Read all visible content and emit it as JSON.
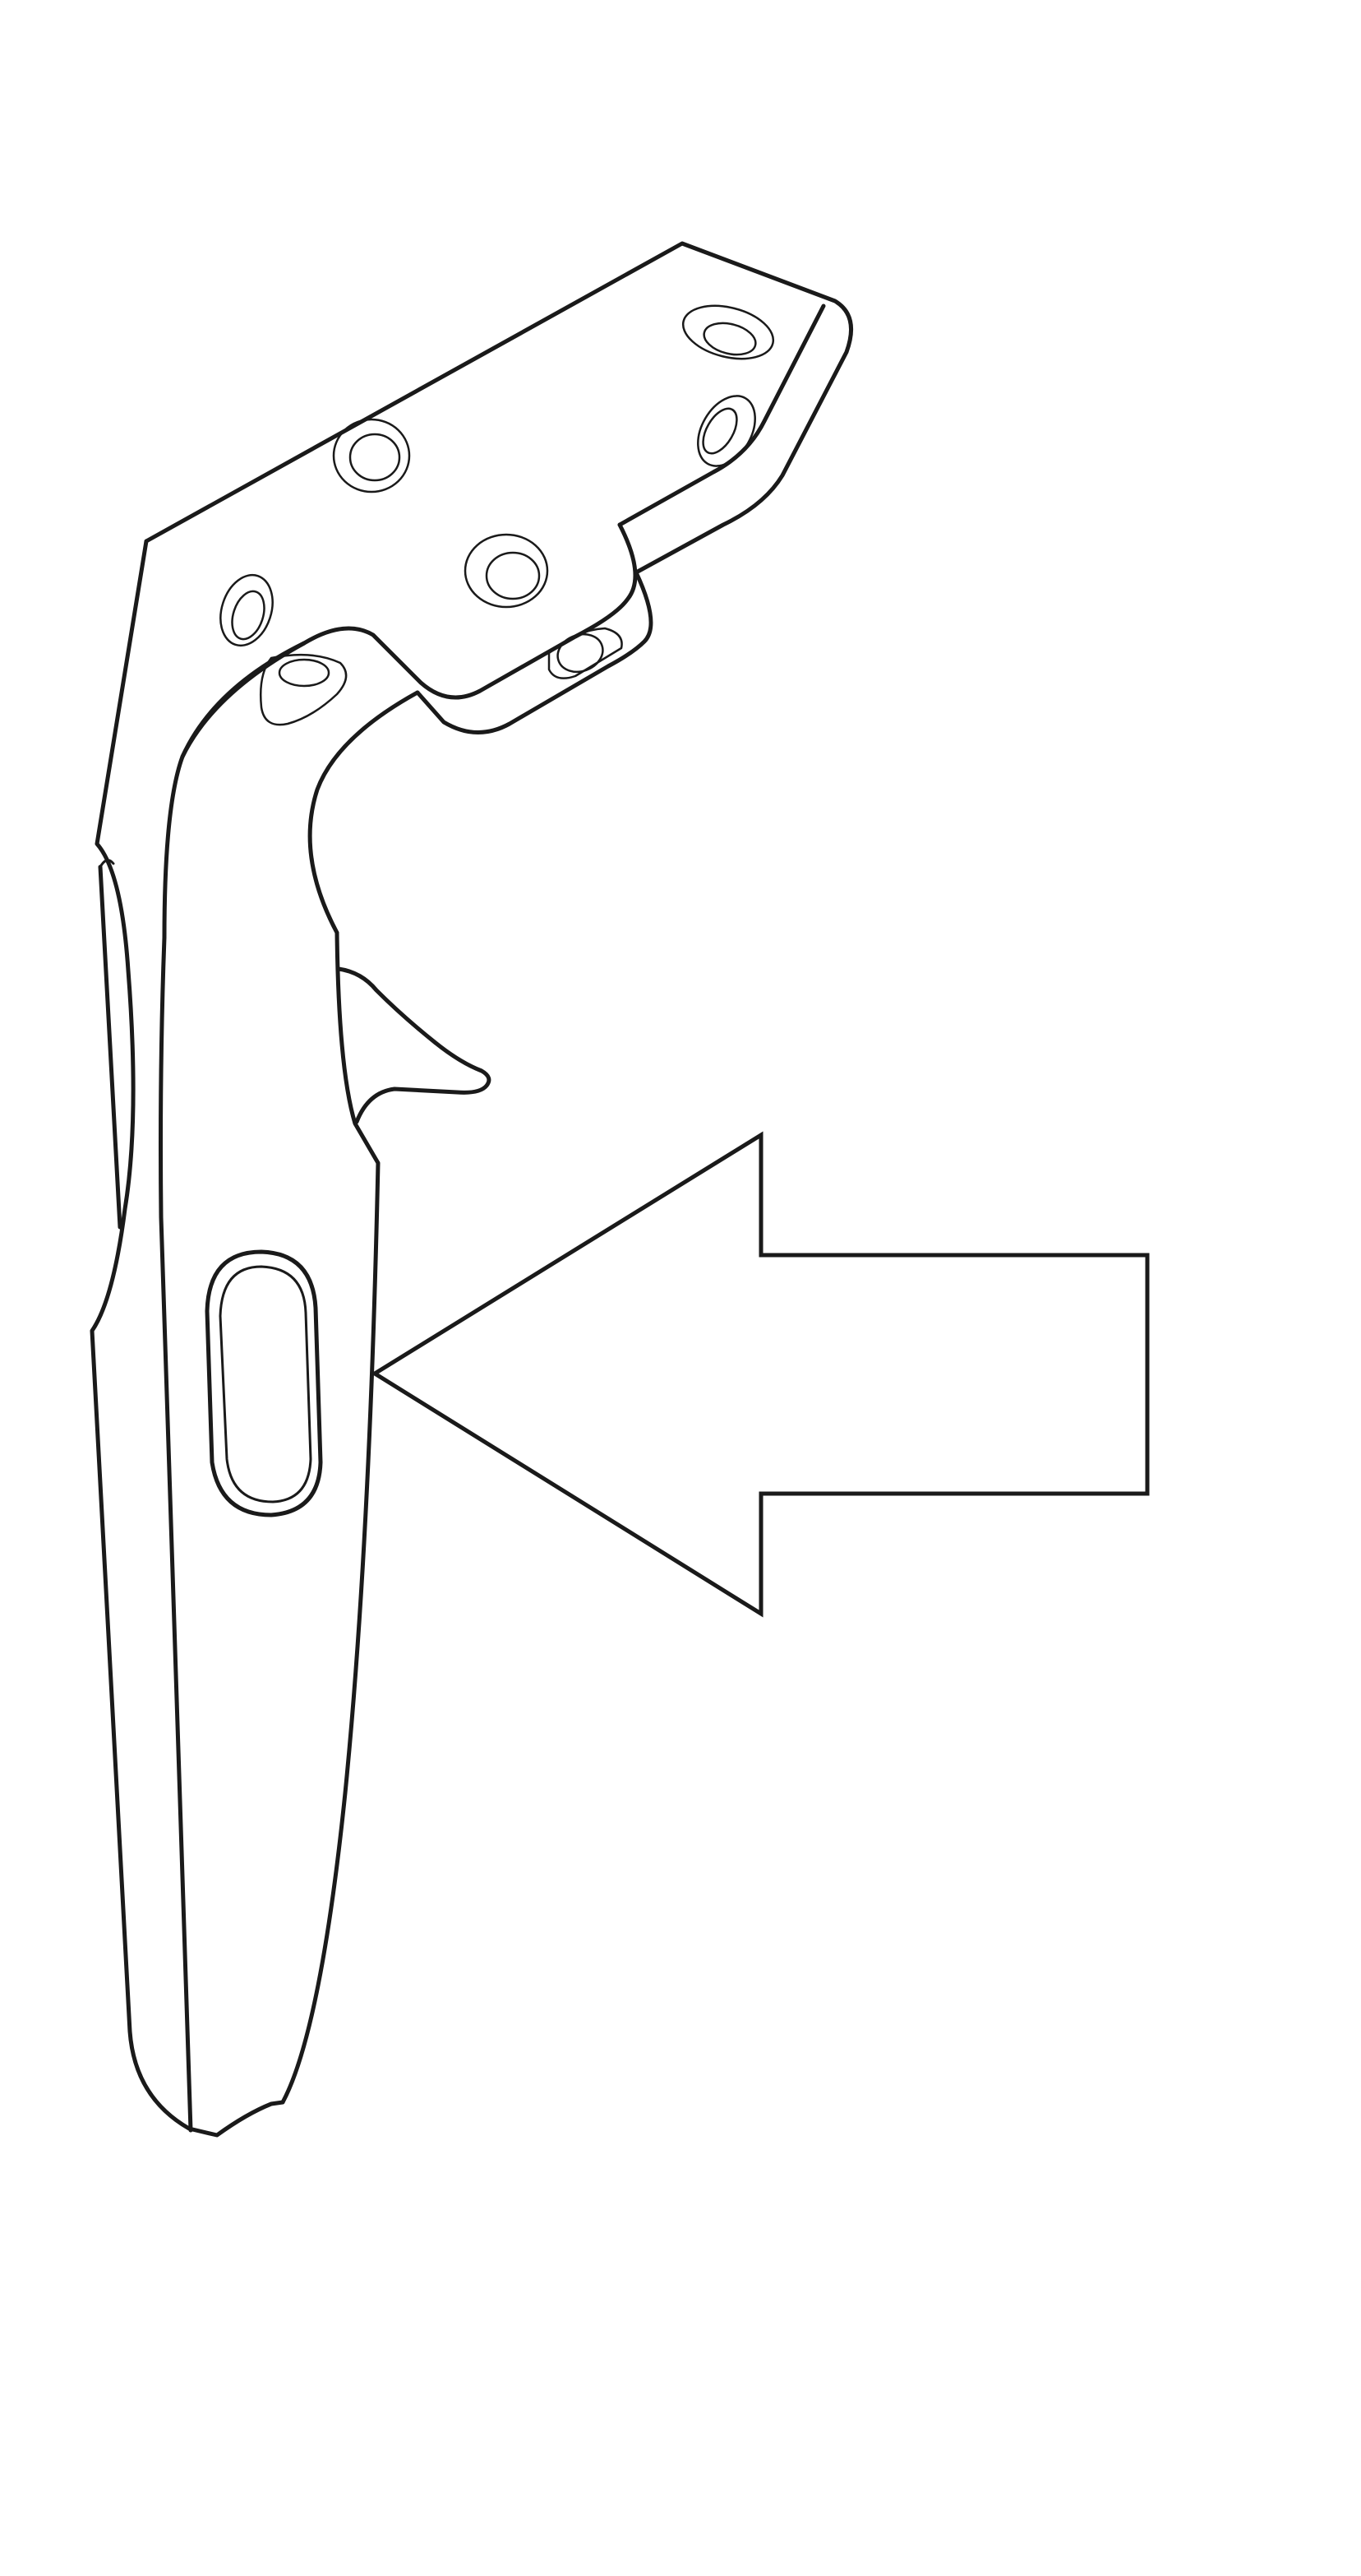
{
  "diagram": {
    "subject": "controller-side-view",
    "highlighted_part": "side-grip-button",
    "pointer": "arrow-pointing-left"
  },
  "colors": {
    "background": "#ffffff",
    "line": "#1a1a1a"
  },
  "icons": {
    "arrow": "arrow-left-icon",
    "controller": "vr-controller-icon"
  }
}
